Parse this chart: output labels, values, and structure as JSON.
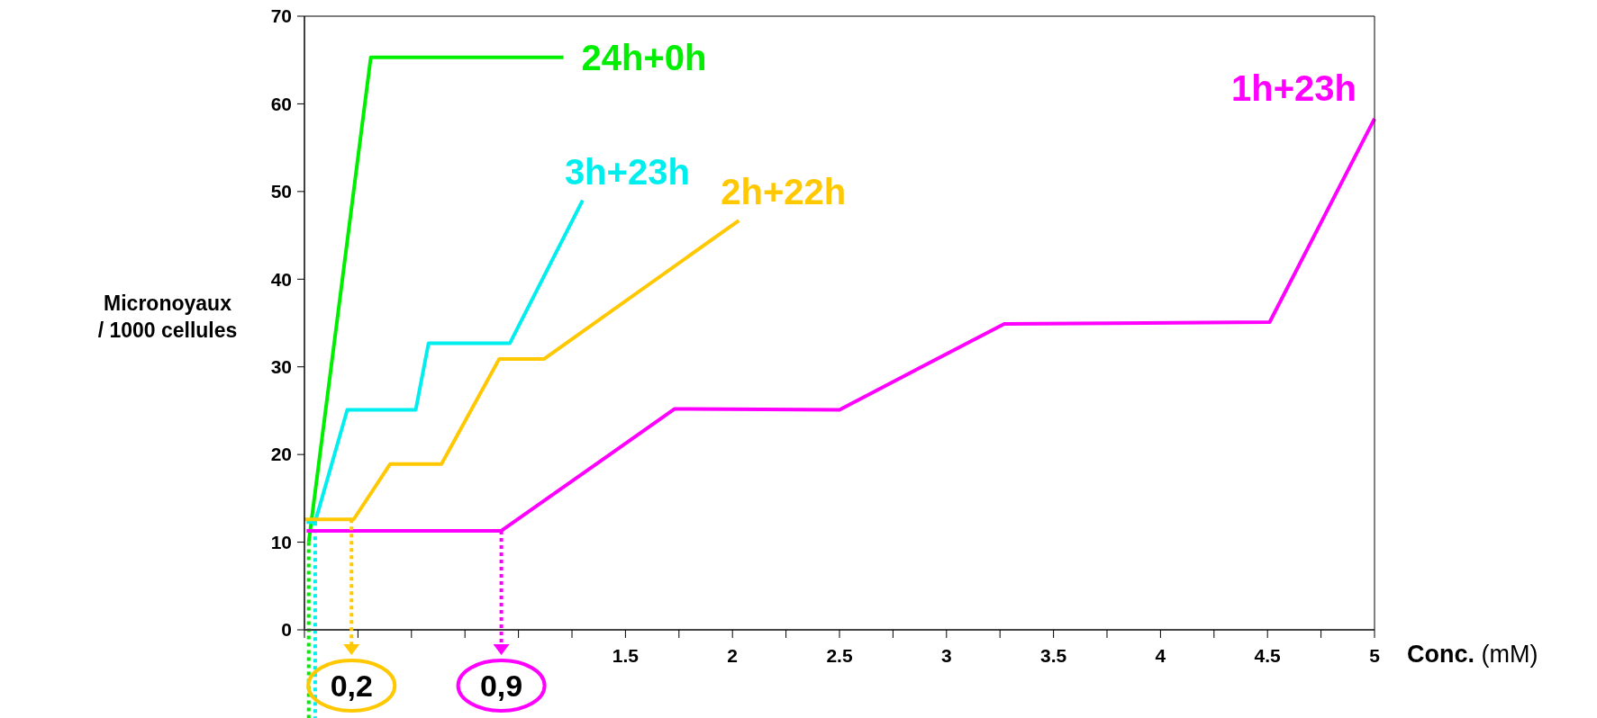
{
  "chart_data": {
    "type": "line",
    "xlabel": "Conc. (mM)",
    "ylabel": "Micronoyaux\n/ 1000 cellules",
    "xlim": [
      0,
      5
    ],
    "ylim": [
      0,
      70
    ],
    "xticks": [
      {
        "value": 0,
        "label": null
      },
      {
        "value": 0.25,
        "label": null
      },
      {
        "value": 0.5,
        "label": null
      },
      {
        "value": 0.75,
        "label": null
      },
      {
        "value": 1,
        "label": null
      },
      {
        "value": 1.25,
        "label": null
      },
      1.5,
      {
        "value": 1.75,
        "label": null
      },
      2,
      {
        "value": 2.25,
        "label": null
      },
      2.5,
      {
        "value": 2.75,
        "label": null
      },
      3,
      {
        "value": 3.25,
        "label": null
      },
      3.5,
      {
        "value": 3.75,
        "label": null
      },
      4,
      {
        "value": 4.25,
        "label": null
      },
      4.5,
      {
        "value": 4.75,
        "label": null
      },
      5
    ],
    "yticks": [
      0,
      10,
      20,
      30,
      40,
      50,
      60,
      70
    ],
    "grid": false,
    "marker": "none",
    "line_style": "solid",
    "series": [
      {
        "name": "24h+0h",
        "color": "#00ee00",
        "x": [
          0.02,
          0.31,
          1.21
        ],
        "values": [
          10,
          65.3,
          65.3
        ]
      },
      {
        "name": "3h+23h",
        "color": "#00eeee",
        "x": [
          0.01,
          0.05,
          0.2,
          0.52,
          0.58,
          0.96,
          1.3
        ],
        "values": [
          12.3,
          12.3,
          25.1,
          25.1,
          32.7,
          32.7,
          49
        ]
      },
      {
        "name": "2h+22h",
        "color": "#ffc800",
        "x": [
          0,
          0.23,
          0.4,
          0.64,
          0.91,
          1.12,
          2.03
        ],
        "values": [
          12.6,
          12.6,
          18.9,
          18.9,
          30.9,
          30.9,
          46.7
        ]
      },
      {
        "name": "1h+23h",
        "color": "#ff00ff",
        "x": [
          0.01,
          0.92,
          1.73,
          2.5,
          3.27,
          4.51,
          5
        ],
        "values": [
          11.3,
          11.3,
          25.2,
          25.1,
          34.9,
          35.1,
          58.3
        ]
      }
    ],
    "annotations": [
      {
        "text": "0,2",
        "x": 0.22,
        "y": 12.6
      },
      {
        "text": "0,9",
        "x": 0.92,
        "y": 11.3
      }
    ]
  }
}
